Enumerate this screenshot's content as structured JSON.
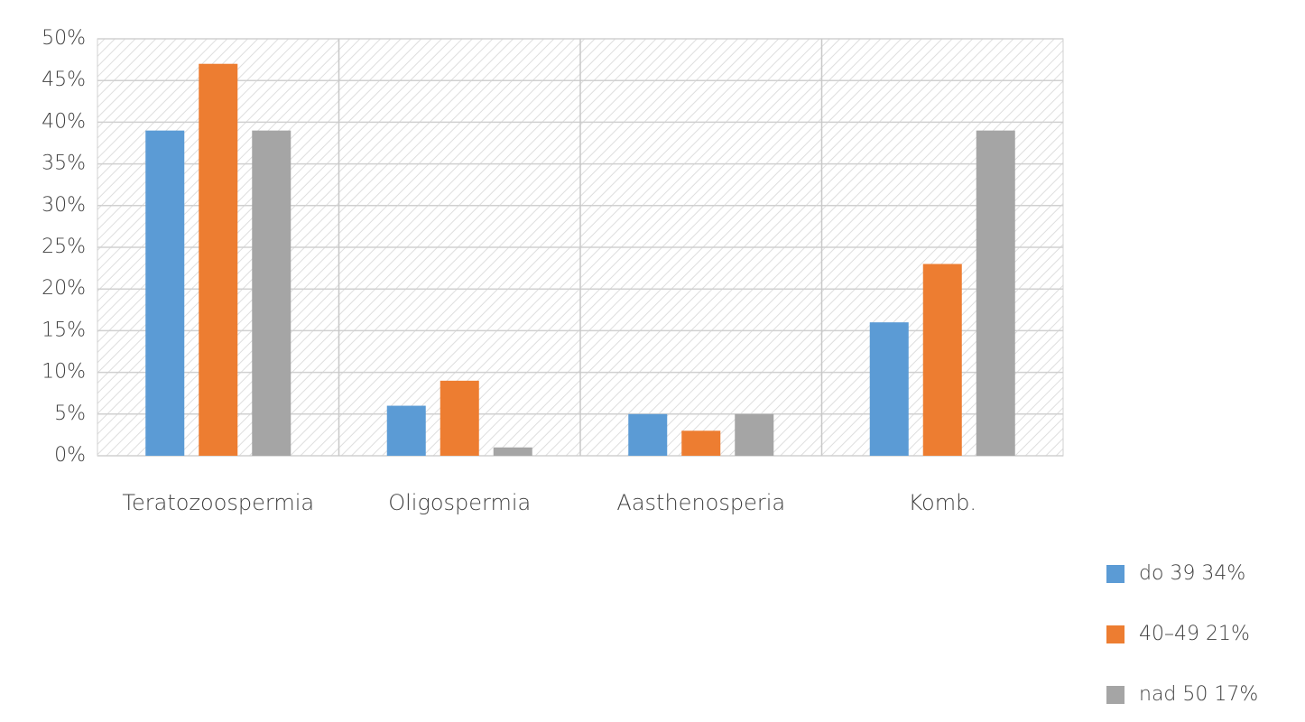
{
  "chart_data": {
    "type": "bar",
    "categories": [
      "Teratozoospermia",
      "Oligospermia",
      "Aasthenosperia",
      "Komb."
    ],
    "series": [
      {
        "name": "do 39 34%",
        "color": "#5b9bd5",
        "values": [
          39,
          6,
          5,
          16
        ]
      },
      {
        "name": "40–49 21%",
        "color": "#ed7d31",
        "values": [
          47,
          9,
          3,
          23
        ]
      },
      {
        "name": "nad 50 17%",
        "color": "#a5a5a5",
        "values": [
          39,
          1,
          5,
          39
        ]
      }
    ],
    "ylim": [
      0,
      50
    ],
    "yticks": [
      {
        "value": 0,
        "label": "0%"
      },
      {
        "value": 5,
        "label": "5%"
      },
      {
        "value": 10,
        "label": "10%"
      },
      {
        "value": 15,
        "label": "15%"
      },
      {
        "value": 20,
        "label": "20%"
      },
      {
        "value": 25,
        "label": "25%"
      },
      {
        "value": 30,
        "label": "30%"
      },
      {
        "value": 35,
        "label": "35%"
      },
      {
        "value": 40,
        "label": "40%"
      },
      {
        "value": 45,
        "label": "45%"
      },
      {
        "value": 50,
        "label": "50%"
      }
    ],
    "grid": true,
    "legend": "right"
  }
}
